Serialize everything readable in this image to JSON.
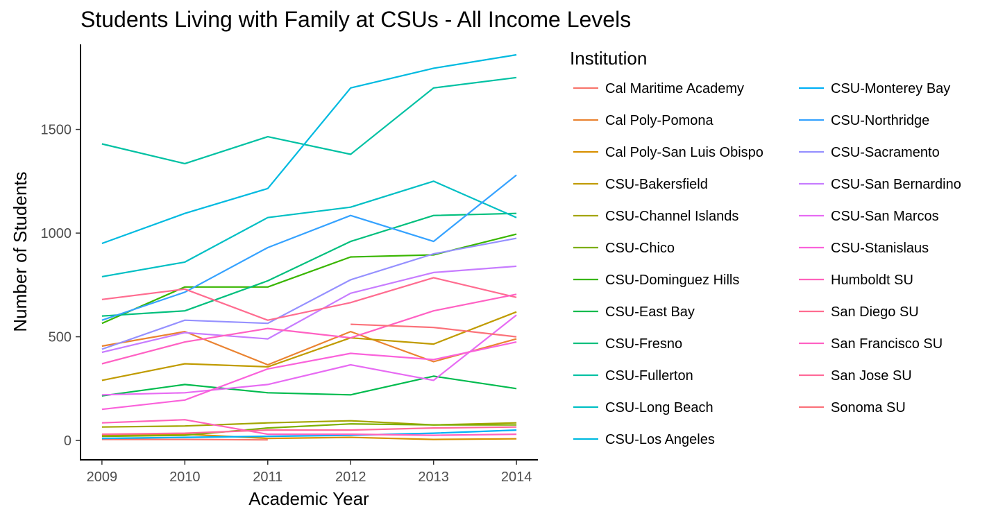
{
  "chart_data": {
    "type": "line",
    "title": "Students Living with Family at CSUs - All Income Levels",
    "xlabel": "Academic Year",
    "ylabel": "Number of Students",
    "x": [
      2009,
      2010,
      2011,
      2012,
      2013,
      2014
    ],
    "x_tick_labels": [
      "2009",
      "2010",
      "2011",
      "2012",
      "2013",
      "2014"
    ],
    "y_ticks": [
      0,
      500,
      1000,
      1500
    ],
    "y_tick_labels": [
      "0",
      "500",
      "1000",
      "1500"
    ],
    "xlim": [
      2008.75,
      2014.25
    ],
    "ylim": [
      -90,
      1910
    ],
    "grid": false,
    "legend_title": "Institution",
    "legend_position": "right",
    "series": [
      {
        "name": "Cal Maritime Academy",
        "color": "#F8766D",
        "values": [
          5,
          5,
          3,
          null,
          null,
          null
        ]
      },
      {
        "name": "Cal Poly-Pomona",
        "color": "#EA8331",
        "values": [
          455,
          525,
          365,
          525,
          380,
          490
        ]
      },
      {
        "name": "Cal Poly-San Luis Obispo",
        "color": "#D89000",
        "values": [
          25,
          30,
          10,
          15,
          5,
          8
        ]
      },
      {
        "name": "CSU-Bakersfield",
        "color": "#C09B00",
        "values": [
          290,
          370,
          355,
          495,
          465,
          620
        ]
      },
      {
        "name": "CSU-Channel Islands",
        "color": "#A3A500",
        "values": [
          65,
          70,
          85,
          95,
          75,
          85
        ]
      },
      {
        "name": "CSU-Chico",
        "color": "#7CAE00",
        "values": [
          20,
          25,
          60,
          80,
          75,
          75
        ]
      },
      {
        "name": "CSU-Dominguez Hills",
        "color": "#39B600",
        "values": [
          565,
          740,
          740,
          885,
          895,
          995
        ]
      },
      {
        "name": "CSU-East Bay",
        "color": "#00BB4E",
        "values": [
          215,
          270,
          230,
          220,
          310,
          250
        ]
      },
      {
        "name": "CSU-Fresno",
        "color": "#00BF7D",
        "values": [
          600,
          625,
          770,
          960,
          1085,
          1095
        ]
      },
      {
        "name": "CSU-Fullerton",
        "color": "#00C1A3",
        "values": [
          1430,
          1335,
          1465,
          1380,
          1700,
          1750
        ]
      },
      {
        "name": "CSU-Long Beach",
        "color": "#00BFC4",
        "values": [
          790,
          860,
          1075,
          1125,
          1250,
          1075
        ]
      },
      {
        "name": "CSU-Los Angeles",
        "color": "#00BAE0",
        "values": [
          950,
          1095,
          1215,
          1700,
          1795,
          1860
        ]
      },
      {
        "name": "CSU-Monterey Bay",
        "color": "#00B0F6",
        "values": [
          10,
          15,
          20,
          25,
          35,
          50
        ]
      },
      {
        "name": "CSU-Northridge",
        "color": "#35A2FF",
        "values": [
          580,
          715,
          930,
          1085,
          960,
          1280
        ]
      },
      {
        "name": "CSU-Sacramento",
        "color": "#9590FF",
        "values": [
          440,
          580,
          565,
          775,
          900,
          975
        ]
      },
      {
        "name": "CSU-San Bernardino",
        "color": "#C77CFF",
        "values": [
          425,
          520,
          490,
          710,
          810,
          840
        ]
      },
      {
        "name": "CSU-San Marcos",
        "color": "#E76BF3",
        "values": [
          220,
          230,
          270,
          365,
          290,
          605
        ]
      },
      {
        "name": "CSU-Stanislaus",
        "color": "#FA62DB",
        "values": [
          150,
          195,
          345,
          420,
          390,
          475
        ]
      },
      {
        "name": "Humboldt SU",
        "color": "#FF62BC",
        "values": [
          85,
          100,
          30,
          30,
          25,
          30
        ]
      },
      {
        "name": "San Diego SU",
        "color": "#FF6C90",
        "values": [
          680,
          730,
          580,
          665,
          785,
          690
        ]
      },
      {
        "name": "San Francisco SU",
        "color": "#FF61C3",
        "values": [
          370,
          475,
          540,
          495,
          625,
          705
        ]
      },
      {
        "name": "San Jose SU",
        "color": "#FF6A98",
        "values": [
          30,
          35,
          50,
          50,
          60,
          65
        ]
      },
      {
        "name": "Sonoma SU",
        "color": "#FB727A",
        "values": [
          null,
          null,
          null,
          560,
          545,
          500
        ]
      }
    ]
  }
}
